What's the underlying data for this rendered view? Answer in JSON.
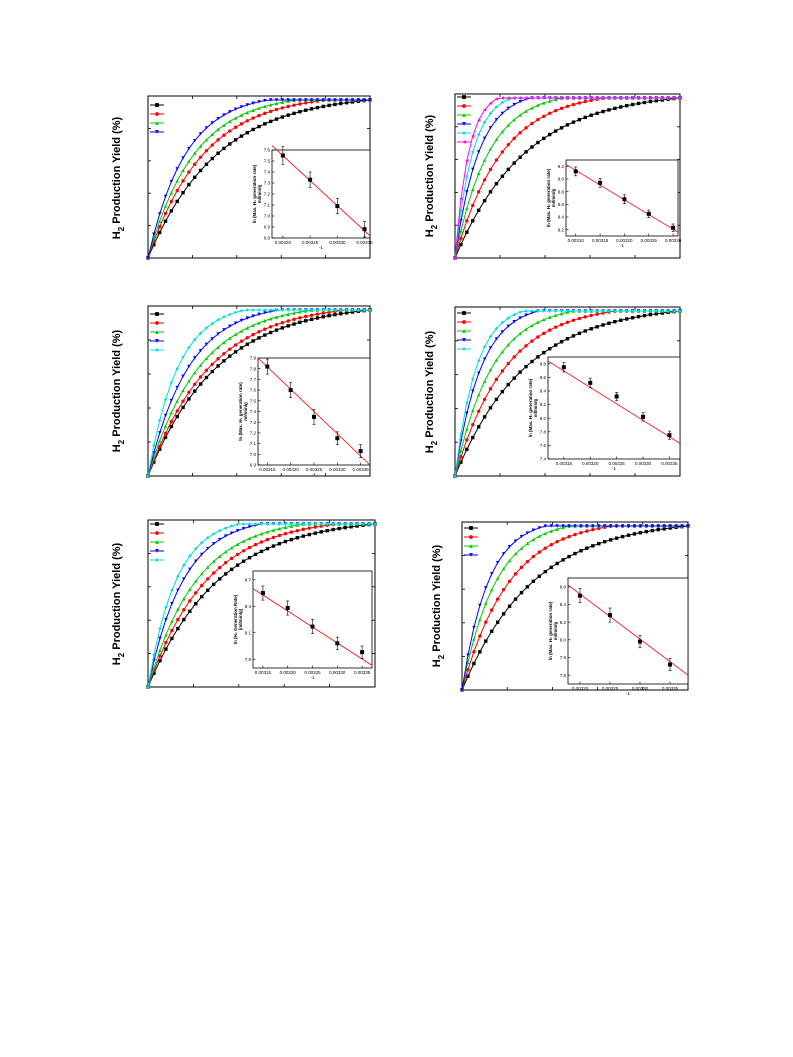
{
  "page": {
    "ylabel_main": "H",
    "ylabel_sub": "2",
    "ylabel_rest": " Production Yield (%)"
  },
  "chart_data": [
    {
      "type": "line",
      "title": "",
      "ylabel": "H2 Production Yield (%)",
      "markers": [
        "square",
        "circle",
        "triangle-up",
        "triangle-down"
      ],
      "colors": [
        "#000000",
        "#ff0000",
        "#00cc00",
        "#0000ff"
      ],
      "series_rates": [
        1.0,
        1.25,
        1.5,
        1.85
      ],
      "inset": {
        "type": "scatter",
        "xlabel": "-1",
        "ylabel": "ln (Max. H2 generation rate) ml/min/g",
        "ylabel_line1": "ln (Max. H₂ generation rate)",
        "ylabel_line2": "ml/min/g",
        "xlim": [
          0.00318,
          0.00336
        ],
        "ylim": [
          6.8,
          7.6
        ],
        "xticks": [
          "0.00320",
          "0.00325",
          "0.00330",
          "0.00335"
        ],
        "yticks": [
          "6.8",
          "6.9",
          "7.0",
          "7.1",
          "7.2",
          "7.3",
          "7.4",
          "7.5",
          "7.6"
        ],
        "x": [
          0.0032,
          0.00325,
          0.0033,
          0.00335
        ],
        "y": [
          7.55,
          7.33,
          7.09,
          6.88
        ],
        "err": [
          0.08,
          0.07,
          0.07,
          0.07
        ],
        "fit": [
          [
            0.00318,
            7.64
          ],
          [
            0.00336,
            6.82
          ]
        ]
      }
    },
    {
      "type": "line",
      "title": "",
      "ylabel": "H2 Production Yield (%)",
      "markers": [
        "square",
        "circle",
        "triangle-up",
        "triangle-down",
        "diamond",
        "triangle-left"
      ],
      "colors": [
        "#000000",
        "#ff0000",
        "#00cc00",
        "#0000ff",
        "#00dddd",
        "#ff00ff"
      ],
      "series_rates": [
        1.0,
        1.5,
        2.1,
        3.0,
        4.0,
        5.2
      ],
      "inset": {
        "type": "scatter",
        "xlabel": "-1",
        "ylabel": "ln (Max. H2 generation rate) ml/min/g",
        "ylabel_line1": "ln (Max. H₂ generation rate)",
        "ylabel_line2": "ml/min/g",
        "xlim": [
          0.00308,
          0.00331
        ],
        "ylim": [
          8.1,
          9.3
        ],
        "xticks": [
          "0.00310",
          "0.00315",
          "0.00320",
          "0.00325",
          "0.00330"
        ],
        "yticks": [
          "8.2",
          "8.4",
          "8.6",
          "8.8",
          "9.0",
          "9.2"
        ],
        "x": [
          0.0031,
          0.00315,
          0.0032,
          0.00325,
          0.0033
        ],
        "y": [
          9.12,
          8.94,
          8.68,
          8.45,
          8.23
        ],
        "err": [
          0.07,
          0.07,
          0.07,
          0.06,
          0.06
        ],
        "fit": [
          [
            0.00308,
            9.23
          ],
          [
            0.00331,
            8.16
          ]
        ]
      }
    },
    {
      "type": "line",
      "title": "",
      "ylabel": "H2 Production Yield (%)",
      "markers": [
        "square",
        "circle",
        "triangle-up",
        "triangle-down",
        "diamond"
      ],
      "colors": [
        "#000000",
        "#ff0000",
        "#00cc00",
        "#0000ff",
        "#00dddd"
      ],
      "series_rates": [
        1.0,
        1.12,
        1.35,
        1.7,
        2.3
      ],
      "inset": {
        "type": "scatter",
        "xlabel": "-1",
        "ylabel": "ln (Max. H2 generation rate) ml/min/g",
        "ylabel_line1": "ln (Max. H₂ generation rate)",
        "ylabel_line2": "ml/min/g",
        "xlim": [
          0.00313,
          0.00337
        ],
        "ylim": [
          6.9,
          7.9
        ],
        "xticks": [
          "0.00315",
          "0.00320",
          "0.00325",
          "0.00330",
          "0.00335"
        ],
        "yticks": [
          "6.9",
          "7.0",
          "7.1",
          "7.2",
          "7.3",
          "7.4",
          "7.5",
          "7.6",
          "7.7",
          "7.8",
          "7.9"
        ],
        "x": [
          0.00315,
          0.0032,
          0.00325,
          0.0033,
          0.00335
        ],
        "y": [
          7.82,
          7.6,
          7.35,
          7.15,
          7.03
        ],
        "err": [
          0.07,
          0.07,
          0.07,
          0.06,
          0.06
        ],
        "fit": [
          [
            0.00313,
            7.9
          ],
          [
            0.00337,
            6.9
          ]
        ]
      }
    },
    {
      "type": "line",
      "title": "",
      "ylabel": "H2 Production Yield (%)",
      "markers": [
        "square",
        "circle",
        "triangle-up",
        "triangle-down",
        "diamond"
      ],
      "colors": [
        "#000000",
        "#ff0000",
        "#00cc00",
        "#0000ff",
        "#00dddd"
      ],
      "series_rates": [
        1.0,
        1.4,
        1.9,
        2.7,
        3.3
      ],
      "inset": {
        "type": "scatter",
        "xlabel": "-1",
        "ylabel": "ln (Max. H2 generation rate) ml/min/g",
        "ylabel_line1": "ln (Max. H₂ generation rate)",
        "ylabel_line2": "ml/min/g",
        "xlim": [
          0.00312,
          0.00337
        ],
        "ylim": [
          7.4,
          8.9
        ],
        "xticks": [
          "0.00315",
          "0.00320",
          "0.00325",
          "0.00330",
          "0.00335"
        ],
        "yticks": [
          "7.4",
          "7.6",
          "7.8",
          "8.0",
          "8.2",
          "8.4",
          "8.6",
          "8.8"
        ],
        "x": [
          0.00315,
          0.0032,
          0.00325,
          0.0033,
          0.00335
        ],
        "y": [
          8.75,
          8.52,
          8.32,
          8.02,
          7.75
        ],
        "err": [
          0.07,
          0.07,
          0.06,
          0.06,
          0.06
        ],
        "fit": [
          [
            0.00312,
            8.84
          ],
          [
            0.00337,
            7.63
          ]
        ]
      }
    },
    {
      "type": "line",
      "title": "",
      "ylabel": "H2 Production Yield (%)",
      "markers": [
        "square",
        "circle",
        "triangle-up",
        "triangle-down",
        "diamond"
      ],
      "colors": [
        "#000000",
        "#ff0000",
        "#00cc00",
        "#0000ff",
        "#00dddd"
      ],
      "series_rates": [
        1.0,
        1.2,
        1.45,
        2.0,
        2.5
      ],
      "inset": {
        "type": "scatter",
        "xlabel": "-1",
        "ylabel": "ln (H2 Generation Rate) (ml/min/g)",
        "ylabel_line1": "ln (H₂ Generation Rate)",
        "ylabel_line2": "(ml/min/g)",
        "xlim": [
          0.00313,
          0.00337
        ],
        "ylim": [
          7.7,
          8.8
        ],
        "xticks": [
          "0.00315",
          "0.00320",
          "0.00325",
          "0.00330",
          "0.00335"
        ],
        "yticks": [
          "7.8",
          "8.1",
          "8.4",
          "8.7"
        ],
        "x": [
          0.00315,
          0.0032,
          0.00325,
          0.0033,
          0.00335
        ],
        "y": [
          8.55,
          8.38,
          8.17,
          7.98,
          7.88
        ],
        "err": [
          0.08,
          0.08,
          0.08,
          0.07,
          0.07
        ],
        "fit": [
          [
            0.00313,
            8.6
          ],
          [
            0.00337,
            7.73
          ]
        ]
      }
    },
    {
      "type": "line",
      "title": "",
      "ylabel": "H2 Production Yield (%)",
      "markers": [
        "square",
        "circle",
        "triangle-up",
        "triangle-down"
      ],
      "colors": [
        "#000000",
        "#ff0000",
        "#00cc00",
        "#0000ff"
      ],
      "series_rates": [
        1.0,
        1.5,
        2.1,
        2.7
      ],
      "inset": {
        "type": "scatter",
        "xlabel": "-1",
        "ylabel": "ln (Max. H2 generation rate) ml/min/g",
        "ylabel_line1": "ln (Max. H₂ generation rate)",
        "ylabel_line2": "ml/min/g",
        "xlim": [
          0.00318,
          0.00338
        ],
        "ylim": [
          7.5,
          8.7
        ],
        "xticks": [
          "0.00320",
          "0.00325",
          "0.00330",
          "0.00335"
        ],
        "yticks": [
          "7.6",
          "7.8",
          "8.0",
          "8.2",
          "8.4",
          "8.6"
        ],
        "x": [
          0.0032,
          0.00325,
          0.0033,
          0.00335
        ],
        "y": [
          8.5,
          8.28,
          7.98,
          7.72
        ],
        "err": [
          0.08,
          0.08,
          0.07,
          0.07
        ],
        "fit": [
          [
            0.00318,
            8.62
          ],
          [
            0.00338,
            7.6
          ]
        ]
      }
    }
  ]
}
